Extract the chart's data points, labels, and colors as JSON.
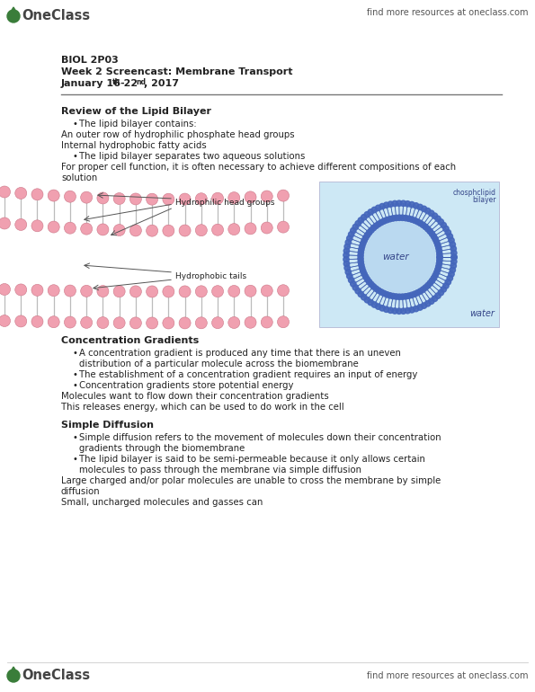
{
  "bg_color": "#ffffff",
  "header_right_text": "find more resources at oneclass.com",
  "footer_right_text": "find more resources at oneclass.com",
  "title_line1": "BIOL 2P03",
  "title_line2": "Week 2 Screencast: Membrane Transport",
  "title_line3": "January 16th-22nd, 2017",
  "section1_header": "Review of the Lipid Bilayer",
  "section2_header": "Concentration Gradients",
  "section3_header": "Simple Diffusion",
  "text_color": "#222222",
  "muted_color": "#555555",
  "logo_green": "#3a7d3a",
  "separator_color": "#777777",
  "head_color": "#f0a0b0",
  "head_edge_color": "#cc7788",
  "vesicle_head_color": "#4466bb",
  "vesicle_tail_color": "#3355aa",
  "vesicle_bg": "#cde8f5",
  "vesicle_water_inner": "#b8d8f0"
}
